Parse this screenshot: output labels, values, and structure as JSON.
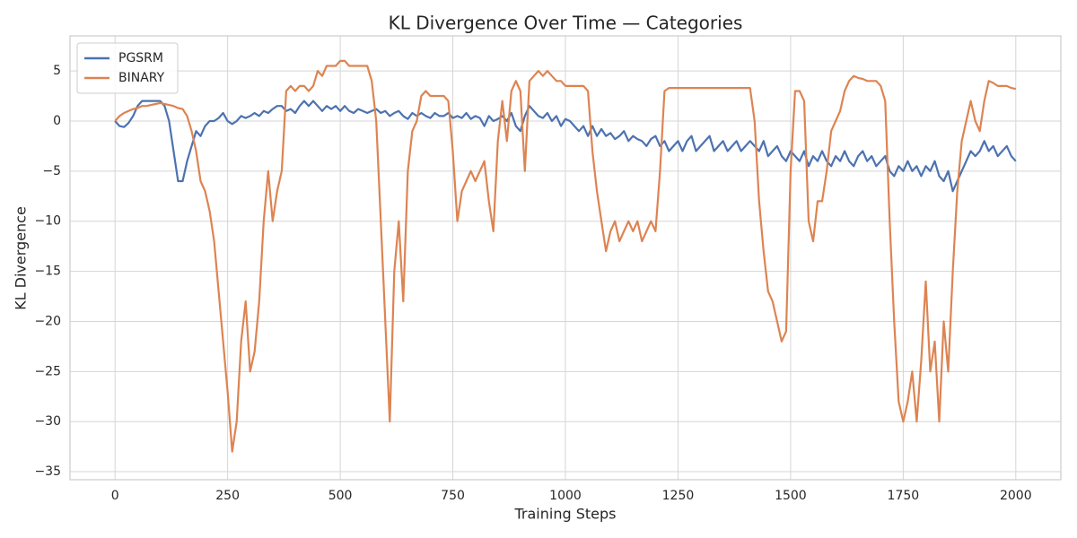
{
  "chart_data": {
    "type": "line",
    "title": "KL Divergence Over Time — Categories",
    "xlabel": "Training Steps",
    "ylabel": "KL Divergence",
    "x": [
      0,
      10,
      20,
      30,
      40,
      50,
      60,
      70,
      80,
      90,
      100,
      110,
      120,
      130,
      140,
      150,
      160,
      170,
      180,
      190,
      200,
      210,
      220,
      230,
      240,
      250,
      260,
      270,
      280,
      290,
      300,
      310,
      320,
      330,
      340,
      350,
      360,
      370,
      380,
      390,
      400,
      410,
      420,
      430,
      440,
      450,
      460,
      470,
      480,
      490,
      500,
      510,
      520,
      530,
      540,
      550,
      560,
      570,
      580,
      590,
      600,
      610,
      620,
      630,
      640,
      650,
      660,
      670,
      680,
      690,
      700,
      710,
      720,
      730,
      740,
      750,
      760,
      770,
      780,
      790,
      800,
      810,
      820,
      830,
      840,
      850,
      860,
      870,
      880,
      890,
      900,
      910,
      920,
      930,
      940,
      950,
      960,
      970,
      980,
      990,
      1000,
      1010,
      1020,
      1030,
      1040,
      1050,
      1060,
      1070,
      1080,
      1090,
      1100,
      1110,
      1120,
      1130,
      1140,
      1150,
      1160,
      1170,
      1180,
      1190,
      1200,
      1210,
      1220,
      1230,
      1240,
      1250,
      1260,
      1270,
      1280,
      1290,
      1300,
      1310,
      1320,
      1330,
      1340,
      1350,
      1360,
      1370,
      1380,
      1390,
      1400,
      1410,
      1420,
      1430,
      1440,
      1450,
      1460,
      1470,
      1480,
      1490,
      1500,
      1510,
      1520,
      1530,
      1540,
      1550,
      1560,
      1570,
      1580,
      1590,
      1600,
      1610,
      1620,
      1630,
      1640,
      1650,
      1660,
      1670,
      1680,
      1690,
      1700,
      1710,
      1720,
      1730,
      1740,
      1750,
      1760,
      1770,
      1780,
      1790,
      1800,
      1810,
      1820,
      1830,
      1840,
      1850,
      1860,
      1870,
      1880,
      1890,
      1900,
      1910,
      1920,
      1930,
      1940,
      1950,
      1960,
      1970,
      1980,
      1990,
      2000
    ],
    "series": [
      {
        "name": "PGSRM",
        "color": "#4c72b0",
        "values": [
          0,
          -0.5,
          -0.6,
          -0.2,
          0.5,
          1.5,
          2,
          2,
          2,
          2,
          2,
          1.5,
          0,
          -3,
          -6,
          -6,
          -4,
          -2.5,
          -1,
          -1.5,
          -0.5,
          0,
          0,
          0.3,
          0.8,
          0,
          -0.3,
          0,
          0.5,
          0.3,
          0.5,
          0.8,
          0.5,
          1,
          0.8,
          1.2,
          1.5,
          1.5,
          1,
          1.2,
          0.8,
          1.5,
          2,
          1.5,
          2,
          1.5,
          1,
          1.5,
          1.2,
          1.5,
          1,
          1.5,
          1,
          0.8,
          1.2,
          1,
          0.8,
          1,
          1.2,
          0.8,
          1,
          0.5,
          0.8,
          1,
          0.5,
          0.2,
          0.8,
          0.5,
          0.8,
          0.5,
          0.3,
          0.8,
          0.5,
          0.5,
          0.8,
          0.3,
          0.5,
          0.3,
          0.8,
          0.2,
          0.5,
          0.3,
          -0.5,
          0.5,
          0,
          0.2,
          0.5,
          0,
          0.8,
          -0.5,
          -1,
          0.5,
          1.5,
          1,
          0.5,
          0.3,
          0.8,
          0,
          0.5,
          -0.5,
          0.2,
          0,
          -0.5,
          -1,
          -0.5,
          -1.5,
          -0.5,
          -1.5,
          -0.8,
          -1.5,
          -1.2,
          -1.8,
          -1.5,
          -1,
          -2,
          -1.5,
          -1.8,
          -2,
          -2.5,
          -1.8,
          -1.5,
          -2.5,
          -2,
          -3,
          -2.5,
          -2,
          -3,
          -2,
          -1.5,
          -3,
          -2.5,
          -2,
          -1.5,
          -3,
          -2.5,
          -2,
          -3,
          -2.5,
          -2,
          -3,
          -2.5,
          -2,
          -2.5,
          -3,
          -2,
          -3.5,
          -3,
          -2.5,
          -3.5,
          -4,
          -3,
          -3.5,
          -4,
          -3,
          -4.5,
          -3.5,
          -4,
          -3,
          -4,
          -4.5,
          -3.5,
          -4,
          -3,
          -4,
          -4.5,
          -3.5,
          -3,
          -4,
          -3.5,
          -4.5,
          -4,
          -3.5,
          -5,
          -5.5,
          -4.5,
          -5,
          -4,
          -5,
          -4.5,
          -5.5,
          -4.5,
          -5,
          -4,
          -5.5,
          -6,
          -5,
          -7,
          -6,
          -5,
          -4,
          -3,
          -3.5,
          -3,
          -2,
          -3,
          -2.5,
          -3.5,
          -3,
          -2.5,
          -3.5,
          -4
        ]
      },
      {
        "name": "BINARY",
        "color": "#dd8452",
        "values": [
          0,
          0.5,
          0.8,
          1,
          1.2,
          1.3,
          1.5,
          1.5,
          1.6,
          1.7,
          1.8,
          1.7,
          1.6,
          1.5,
          1.3,
          1.2,
          0.5,
          -1,
          -3,
          -6,
          -7,
          -9,
          -12,
          -17,
          -22,
          -27,
          -33,
          -30,
          -22,
          -18,
          -25,
          -23,
          -18,
          -10,
          -5,
          -10,
          -7,
          -5,
          3,
          3.5,
          3,
          3.5,
          3.5,
          3,
          3.5,
          5,
          4.5,
          5.5,
          5.5,
          5.5,
          6,
          6,
          5.5,
          5.5,
          5.5,
          5.5,
          5.5,
          4,
          0,
          -10,
          -20,
          -30,
          -15,
          -10,
          -18,
          -5,
          -1,
          0,
          2.5,
          3,
          2.5,
          2.5,
          2.5,
          2.5,
          2,
          -3,
          -10,
          -7,
          -6,
          -5,
          -6,
          -5,
          -4,
          -8,
          -11,
          -2,
          2,
          -2,
          3,
          4,
          3,
          -5,
          4,
          4.5,
          5,
          4.5,
          5,
          4.5,
          4,
          4,
          3.5,
          3.5,
          3.5,
          3.5,
          3.5,
          3,
          -3,
          -7,
          -10,
          -13,
          -11,
          -10,
          -12,
          -11,
          -10,
          -11,
          -10,
          -12,
          -11,
          -10,
          -11,
          -5,
          3,
          3.3,
          3.3,
          3.3,
          3.3,
          3.3,
          3.3,
          3.3,
          3.3,
          3.3,
          3.3,
          3.3,
          3.3,
          3.3,
          3.3,
          3.3,
          3.3,
          3.3,
          3.3,
          3.3,
          0,
          -8,
          -13,
          -17,
          -18,
          -20,
          -22,
          -21,
          -5,
          3,
          3,
          2,
          -10,
          -12,
          -8,
          -8,
          -5,
          -1,
          0,
          1,
          3,
          4,
          4.5,
          4.3,
          4.2,
          4,
          4,
          4,
          3.5,
          2,
          -10,
          -20,
          -28,
          -30,
          -28,
          -25,
          -30,
          -24,
          -16,
          -25,
          -22,
          -30,
          -20,
          -25,
          -15,
          -7,
          -2,
          0,
          2,
          0,
          -1,
          2,
          4,
          3.8,
          3.5,
          3.5,
          3.5,
          3.3,
          3.2
        ]
      }
    ],
    "xlim": [
      -100,
      2100
    ],
    "ylim": [
      -35.8,
      8.5
    ],
    "xticks": [
      0,
      250,
      500,
      750,
      1000,
      1250,
      1500,
      1750,
      2000
    ],
    "yticks": [
      {
        "value": -35,
        "label": "−35"
      },
      {
        "value": -30,
        "label": "−30"
      },
      {
        "value": -25,
        "label": "−25"
      },
      {
        "value": -20,
        "label": "−20"
      },
      {
        "value": -15,
        "label": "−15"
      },
      {
        "value": -10,
        "label": "−10"
      },
      {
        "value": -5,
        "label": "−5"
      },
      0,
      5
    ],
    "grid": true,
    "legend": "upper left"
  }
}
